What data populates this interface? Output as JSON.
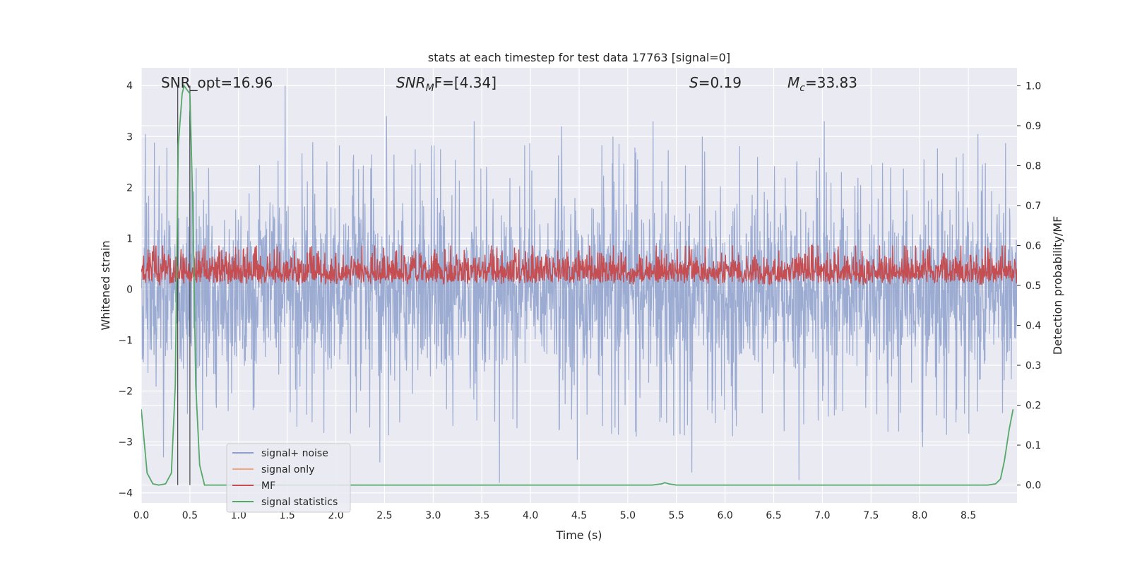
{
  "chart_data": {
    "type": "line",
    "title": "stats at each timestep for test data 17763 [signal=0]",
    "xlabel": "Time (s)",
    "ylabel": "Whitened strain",
    "y2label": "Detection probability/MF",
    "xlim": [
      0,
      9.0
    ],
    "ylim": [
      -4.2,
      4.35
    ],
    "y2lim": [
      -0.045,
      1.045
    ],
    "x_ticks": [
      0.0,
      0.5,
      1.0,
      1.5,
      2.0,
      2.5,
      3.0,
      3.5,
      4.0,
      4.5,
      5.0,
      5.5,
      6.0,
      6.5,
      7.0,
      7.5,
      8.0,
      8.5
    ],
    "x_tick_labels": [
      "0.0",
      "0.5",
      "1.0",
      "1.5",
      "2.0",
      "2.5",
      "3.0",
      "3.5",
      "4.0",
      "4.5",
      "5.0",
      "5.5",
      "6.0",
      "6.5",
      "7.0",
      "7.5",
      "8.0",
      "8.5"
    ],
    "y_ticks": [
      -4,
      -3,
      -2,
      -1,
      0,
      1,
      2,
      3,
      4
    ],
    "y_tick_labels": [
      "−4",
      "−3",
      "−2",
      "−1",
      "0",
      "1",
      "2",
      "3",
      "4"
    ],
    "y2_ticks": [
      0.0,
      0.1,
      0.2,
      0.3,
      0.4,
      0.5,
      0.6,
      0.7,
      0.8,
      0.9,
      1.0
    ],
    "y2_tick_labels": [
      "0.0",
      "0.1",
      "0.2",
      "0.3",
      "0.4",
      "0.5",
      "0.6",
      "0.7",
      "0.8",
      "0.9",
      "1.0"
    ],
    "grid": true,
    "legend_position": "lower-left",
    "legend": [
      {
        "label": "signal+ noise",
        "color": "#8da0cb"
      },
      {
        "label": "signal only",
        "color": "#f4a582"
      },
      {
        "label": "MF",
        "color": "#c44e52"
      },
      {
        "label": "signal statistics",
        "color": "#55a868"
      }
    ],
    "annotations": {
      "snr_opt": "SNR_opt=16.96",
      "snr_mf_main": "SNR",
      "snr_mf_sub": "M",
      "snr_mf_tail": "F=[4.34]",
      "s_main": "S",
      "s_tail": "=0.19",
      "mc_main": "M",
      "mc_sub": "c",
      "mc_tail": "=33.83"
    },
    "vertical_markers_x": [
      0.375,
      0.5
    ],
    "series": [
      {
        "name": "signal+ noise",
        "axis": "left",
        "color": "#8da0cb",
        "description_stats": {
          "x_range": [
            0,
            9.0
          ],
          "typical_max": 2.2,
          "typical_min": -2.2,
          "peak_max": 4.0,
          "peak_min": -3.8
        },
        "notable_points": [
          [
            0.04,
            3.05
          ],
          [
            0.5,
            3.5
          ],
          [
            1.48,
            4.0
          ],
          [
            2.52,
            3.4
          ],
          [
            3.42,
            3.3
          ],
          [
            4.32,
            3.2
          ],
          [
            5.26,
            3.3
          ],
          [
            7.02,
            3.3
          ],
          [
            8.6,
            3.05
          ],
          [
            0.23,
            -3.3
          ],
          [
            2.45,
            -3.4
          ],
          [
            3.68,
            -3.8
          ],
          [
            4.48,
            -3.35
          ],
          [
            5.66,
            -3.6
          ],
          [
            6.76,
            -3.75
          ],
          [
            8.03,
            -3.1
          ]
        ]
      },
      {
        "name": "MF",
        "axis": "right",
        "color": "#c44e52",
        "description_stats": {
          "x_range": [
            0,
            9.0
          ],
          "typical_max": 0.6,
          "typical_min": 0.5,
          "peak_max": 0.6
        }
      },
      {
        "name": "signal statistics",
        "axis": "right",
        "color": "#55a868",
        "x": [
          0.0,
          0.06,
          0.12,
          0.18,
          0.25,
          0.31,
          0.35,
          0.38,
          0.42,
          0.44,
          0.47,
          0.5,
          0.53,
          0.56,
          0.6,
          0.65,
          0.75,
          1.0,
          2.0,
          3.0,
          4.0,
          5.0,
          5.25,
          5.35,
          5.38,
          5.42,
          5.5,
          6.0,
          7.0,
          8.0,
          8.7,
          8.78,
          8.83,
          8.87,
          8.92,
          8.96
        ],
        "values": [
          0.19,
          0.03,
          0.003,
          0.0,
          0.003,
          0.03,
          0.25,
          0.85,
          0.98,
          1.0,
          0.99,
          0.98,
          0.7,
          0.25,
          0.05,
          0.0,
          0.0,
          0.0,
          0.0,
          0.0,
          0.0,
          0.0,
          0.0,
          0.003,
          0.006,
          0.003,
          0.0,
          0.0,
          0.0,
          0.0,
          0.0,
          0.003,
          0.015,
          0.06,
          0.14,
          0.19
        ]
      }
    ]
  }
}
